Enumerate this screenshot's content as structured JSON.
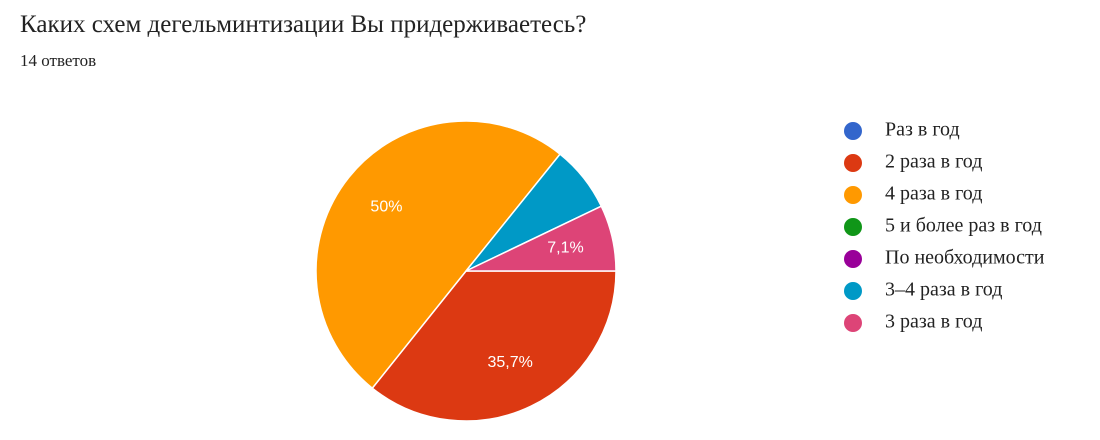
{
  "chart_data": {
    "type": "pie",
    "title": "Каких схем дегельминтизации Вы придерживаетесь?",
    "subtitle": "14 ответов",
    "categories": [
      "Раз в год",
      "2 раза в год",
      "4 раза в год",
      "5 и более раз в год",
      "По необходимости",
      "3–4 раза в год",
      "3 раза в год"
    ],
    "values": [
      0,
      35.7,
      50,
      0,
      0,
      7.1,
      7.1
    ],
    "value_labels": [
      null,
      "35,7%",
      "50%",
      null,
      null,
      null,
      "7,1%"
    ],
    "colors": [
      "#3366cc",
      "#dc3912",
      "#ff9900",
      "#109618",
      "#990099",
      "#0099c6",
      "#dd4477"
    ],
    "legend": "right"
  }
}
